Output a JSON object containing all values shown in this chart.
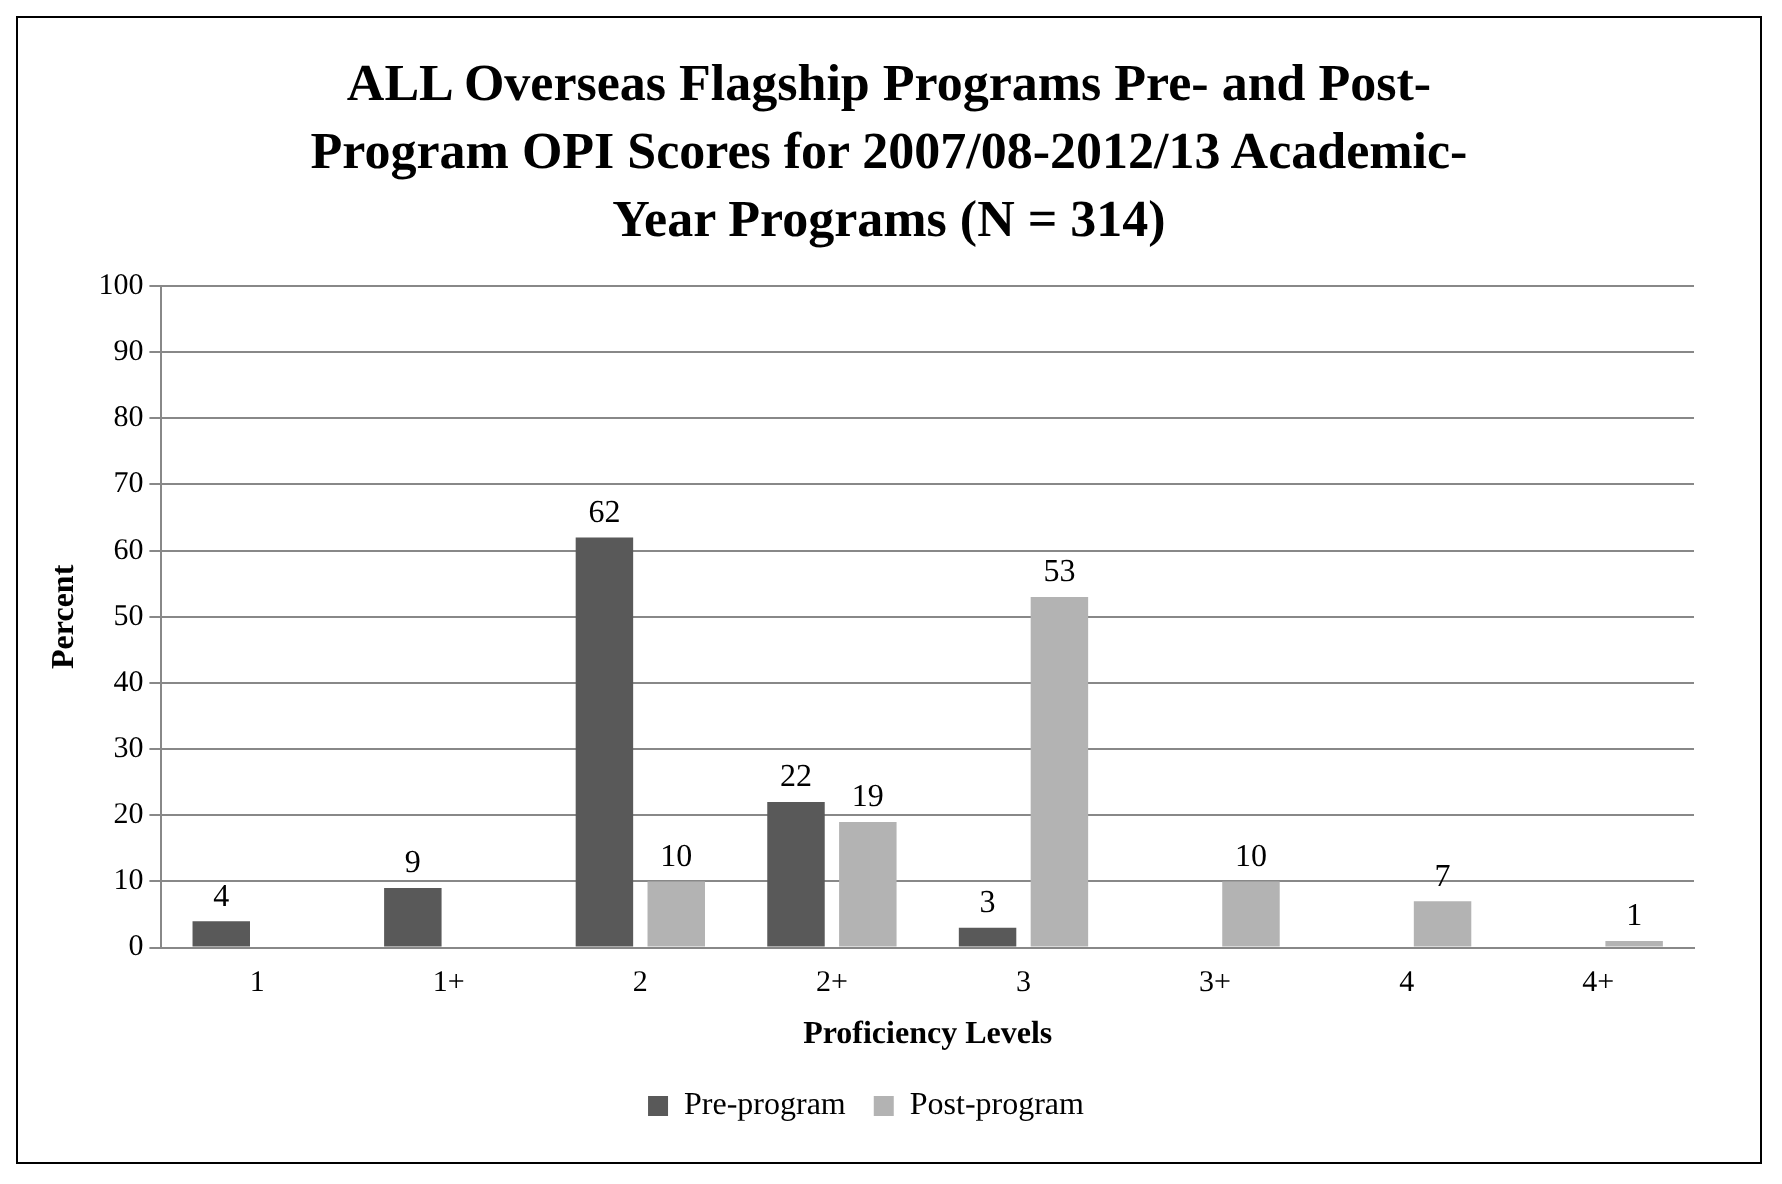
{
  "chart_data": {
    "type": "bar",
    "title": "ALL Overseas Flagship Programs Pre- and Post-Program OPI Scores for 2007/08-2012/13 Academic-Year Programs (N = 314)",
    "xlabel": "Proficiency Levels",
    "ylabel": "Percent",
    "categories": [
      "1",
      "1+",
      "2",
      "2+",
      "3",
      "3+",
      "4",
      "4+"
    ],
    "series": [
      {
        "name": "Pre-program",
        "color": "#595959",
        "values": [
          4,
          9,
          62,
          22,
          3,
          null,
          null,
          null
        ]
      },
      {
        "name": "Post-program",
        "color": "#b3b3b3",
        "values": [
          null,
          null,
          10,
          19,
          53,
          10,
          7,
          1
        ]
      }
    ],
    "ylim": [
      0,
      100
    ],
    "yticks": [
      0,
      10,
      20,
      30,
      40,
      50,
      60,
      70,
      80,
      90,
      100
    ],
    "grid": "y",
    "legend": "bottom",
    "data_labels": true
  }
}
